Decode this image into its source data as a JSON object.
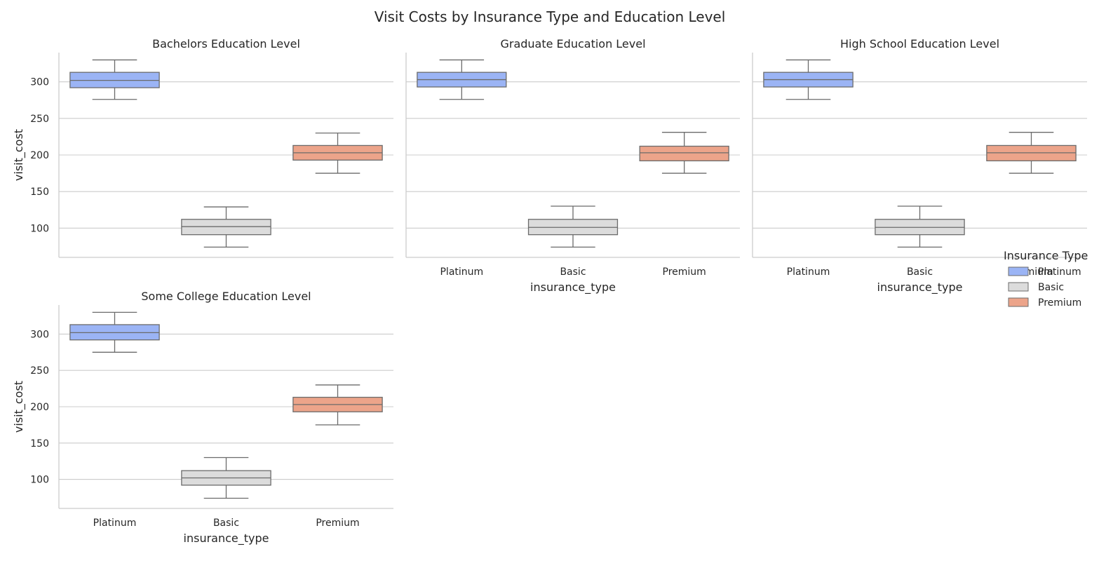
{
  "chart_data": {
    "type": "box",
    "title": "Visit Costs by Insurance Type and Education Level",
    "categories": [
      "Platinum",
      "Basic",
      "Premium"
    ],
    "xlabel": "insurance_type",
    "ylabel": "visit_cost",
    "ylim": [
      60,
      340
    ],
    "yticks": [
      100,
      150,
      200,
      250,
      300
    ],
    "grid": "horizontal",
    "legend": {
      "title": "Insurance Type",
      "placement": "right",
      "entries": [
        "Platinum",
        "Basic",
        "Premium"
      ]
    },
    "colors": {
      "Platinum": "#9bb4f5",
      "Basic": "#dcdcdc",
      "Premium": "#eca48a"
    },
    "box_edge_color": "#6b6b6b",
    "panels": [
      {
        "title": "Bachelors Education Level",
        "boxes": [
          {
            "category": "Platinum",
            "min": 276,
            "q1": 292,
            "median": 302,
            "q3": 313,
            "max": 330
          },
          {
            "category": "Basic",
            "min": 74,
            "q1": 91,
            "median": 102,
            "q3": 112,
            "max": 129
          },
          {
            "category": "Premium",
            "min": 175,
            "q1": 193,
            "median": 203,
            "q3": 213,
            "max": 230
          }
        ]
      },
      {
        "title": "Graduate Education Level",
        "boxes": [
          {
            "category": "Platinum",
            "min": 276,
            "q1": 293,
            "median": 303,
            "q3": 313,
            "max": 330
          },
          {
            "category": "Basic",
            "min": 74,
            "q1": 91,
            "median": 101,
            "q3": 112,
            "max": 130
          },
          {
            "category": "Premium",
            "min": 175,
            "q1": 192,
            "median": 203,
            "q3": 212,
            "max": 231
          }
        ]
      },
      {
        "title": "High School Education Level",
        "boxes": [
          {
            "category": "Platinum",
            "min": 276,
            "q1": 293,
            "median": 303,
            "q3": 313,
            "max": 330
          },
          {
            "category": "Basic",
            "min": 74,
            "q1": 91,
            "median": 101,
            "q3": 112,
            "max": 130
          },
          {
            "category": "Premium",
            "min": 175,
            "q1": 192,
            "median": 203,
            "q3": 213,
            "max": 231
          }
        ]
      },
      {
        "title": "Some College Education Level",
        "boxes": [
          {
            "category": "Platinum",
            "min": 275,
            "q1": 292,
            "median": 302,
            "q3": 313,
            "max": 330
          },
          {
            "category": "Basic",
            "min": 74,
            "q1": 92,
            "median": 102,
            "q3": 112,
            "max": 130
          },
          {
            "category": "Premium",
            "min": 175,
            "q1": 193,
            "median": 203,
            "q3": 213,
            "max": 230
          }
        ]
      }
    ]
  }
}
